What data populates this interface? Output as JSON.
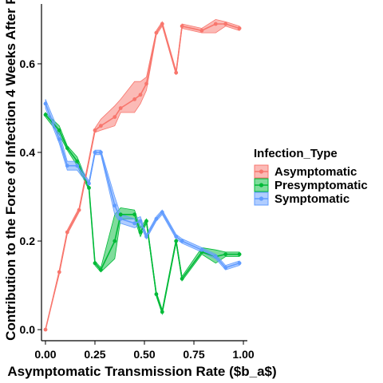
{
  "chart_data": {
    "type": "line",
    "xlabel": "Asymptomatic  Transmission Rate ($b_a$)",
    "ylabel": "Contribution to the Force of Infection 4 Weeks After F",
    "xlim": [
      -0.02,
      1.02
    ],
    "ylim": [
      -0.025,
      0.735
    ],
    "x_ticks": [
      0.0,
      0.25,
      0.5,
      0.75,
      1.0
    ],
    "x_tick_labels": [
      "0.00",
      "0.25",
      "0.50",
      "0.75",
      "1.00"
    ],
    "y_ticks": [
      0.0,
      0.2,
      0.4,
      0.6
    ],
    "y_tick_labels": [
      "0.0",
      "0.2",
      "0.4",
      "0.6"
    ],
    "grid": false,
    "legend": {
      "title": "Infection_Type",
      "placement": "right"
    },
    "series": [
      {
        "name": "Asymptomatic",
        "color": "#F8766D",
        "x": [
          0.0,
          0.07,
          0.11,
          0.17,
          0.25,
          0.28,
          0.35,
          0.38,
          0.45,
          0.48,
          0.51,
          0.56,
          0.59,
          0.66,
          0.69,
          0.79,
          0.86,
          0.91,
          0.98
        ],
        "y": [
          0.0,
          0.13,
          0.22,
          0.27,
          0.45,
          0.46,
          0.48,
          0.5,
          0.52,
          0.53,
          0.555,
          0.67,
          0.69,
          0.58,
          0.685,
          0.675,
          0.69,
          0.69,
          0.68
        ],
        "lower": [
          0.0,
          0.125,
          0.215,
          0.265,
          0.445,
          0.45,
          0.46,
          0.49,
          0.49,
          0.51,
          0.54,
          0.665,
          0.685,
          0.575,
          0.68,
          0.67,
          0.67,
          0.685,
          0.675
        ],
        "upper": [
          0.0,
          0.135,
          0.225,
          0.275,
          0.455,
          0.475,
          0.505,
          0.52,
          0.56,
          0.56,
          0.57,
          0.675,
          0.695,
          0.585,
          0.69,
          0.68,
          0.7,
          0.695,
          0.685
        ]
      },
      {
        "name": "Presymptomatic",
        "color": "#00BA38",
        "x": [
          0.0,
          0.07,
          0.11,
          0.16,
          0.22,
          0.25,
          0.28,
          0.35,
          0.38,
          0.45,
          0.48,
          0.51,
          0.56,
          0.59,
          0.66,
          0.69,
          0.79,
          0.86,
          0.91,
          0.98
        ],
        "y": [
          0.485,
          0.45,
          0.41,
          0.38,
          0.32,
          0.15,
          0.135,
          0.2,
          0.26,
          0.26,
          0.22,
          0.245,
          0.08,
          0.04,
          0.2,
          0.115,
          0.175,
          0.165,
          0.17,
          0.17
        ],
        "lower": [
          0.48,
          0.44,
          0.405,
          0.37,
          0.315,
          0.145,
          0.13,
          0.16,
          0.25,
          0.25,
          0.21,
          0.24,
          0.075,
          0.035,
          0.195,
          0.11,
          0.17,
          0.15,
          0.165,
          0.165
        ],
        "upper": [
          0.49,
          0.46,
          0.415,
          0.39,
          0.325,
          0.155,
          0.14,
          0.26,
          0.275,
          0.27,
          0.23,
          0.25,
          0.085,
          0.045,
          0.205,
          0.12,
          0.185,
          0.18,
          0.175,
          0.175
        ]
      },
      {
        "name": "Symptomatic",
        "color": "#619CFF",
        "x": [
          0.0,
          0.07,
          0.11,
          0.16,
          0.22,
          0.25,
          0.28,
          0.35,
          0.38,
          0.45,
          0.48,
          0.51,
          0.56,
          0.59,
          0.66,
          0.69,
          0.79,
          0.86,
          0.91,
          0.98
        ],
        "y": [
          0.51,
          0.43,
          0.37,
          0.37,
          0.33,
          0.4,
          0.4,
          0.28,
          0.25,
          0.24,
          0.245,
          0.21,
          0.25,
          0.265,
          0.21,
          0.2,
          0.18,
          0.165,
          0.14,
          0.15
        ],
        "lower": [
          0.5,
          0.42,
          0.36,
          0.36,
          0.325,
          0.395,
          0.395,
          0.26,
          0.24,
          0.23,
          0.235,
          0.205,
          0.245,
          0.26,
          0.205,
          0.195,
          0.175,
          0.16,
          0.135,
          0.145
        ],
        "upper": [
          0.52,
          0.445,
          0.38,
          0.38,
          0.335,
          0.405,
          0.405,
          0.3,
          0.26,
          0.25,
          0.255,
          0.215,
          0.255,
          0.27,
          0.215,
          0.205,
          0.185,
          0.17,
          0.145,
          0.155
        ]
      }
    ]
  }
}
